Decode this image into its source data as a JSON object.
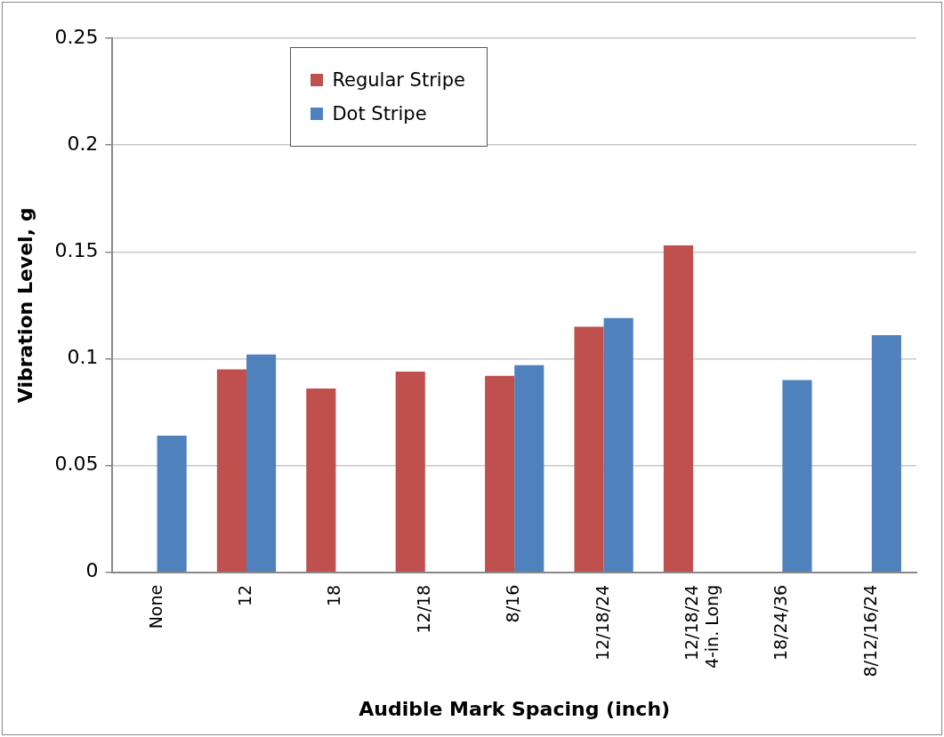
{
  "chart_data": {
    "type": "bar",
    "xlabel": "Audible Mark Spacing (inch)",
    "ylabel": "Vibration Level, g",
    "categories": [
      "None",
      "12",
      "18",
      "12/18",
      "8/16",
      "12/18/24",
      "12/18/24\n4-in. Long",
      "18/24/36",
      "8/12/16/24"
    ],
    "series": [
      {
        "name": "Regular Stripe",
        "color": "#c0504d",
        "values": [
          null,
          0.095,
          0.086,
          0.094,
          0.092,
          0.115,
          0.153,
          null,
          null
        ]
      },
      {
        "name": "Dot Stripe",
        "color": "#4f81bd",
        "values": [
          0.064,
          0.102,
          null,
          null,
          0.097,
          0.119,
          null,
          0.09,
          0.111
        ]
      }
    ],
    "ylim": [
      0,
      0.25
    ],
    "yticks": [
      0,
      0.05,
      0.1,
      0.15,
      0.2,
      0.25
    ],
    "grid": "y",
    "legend": "top left"
  }
}
